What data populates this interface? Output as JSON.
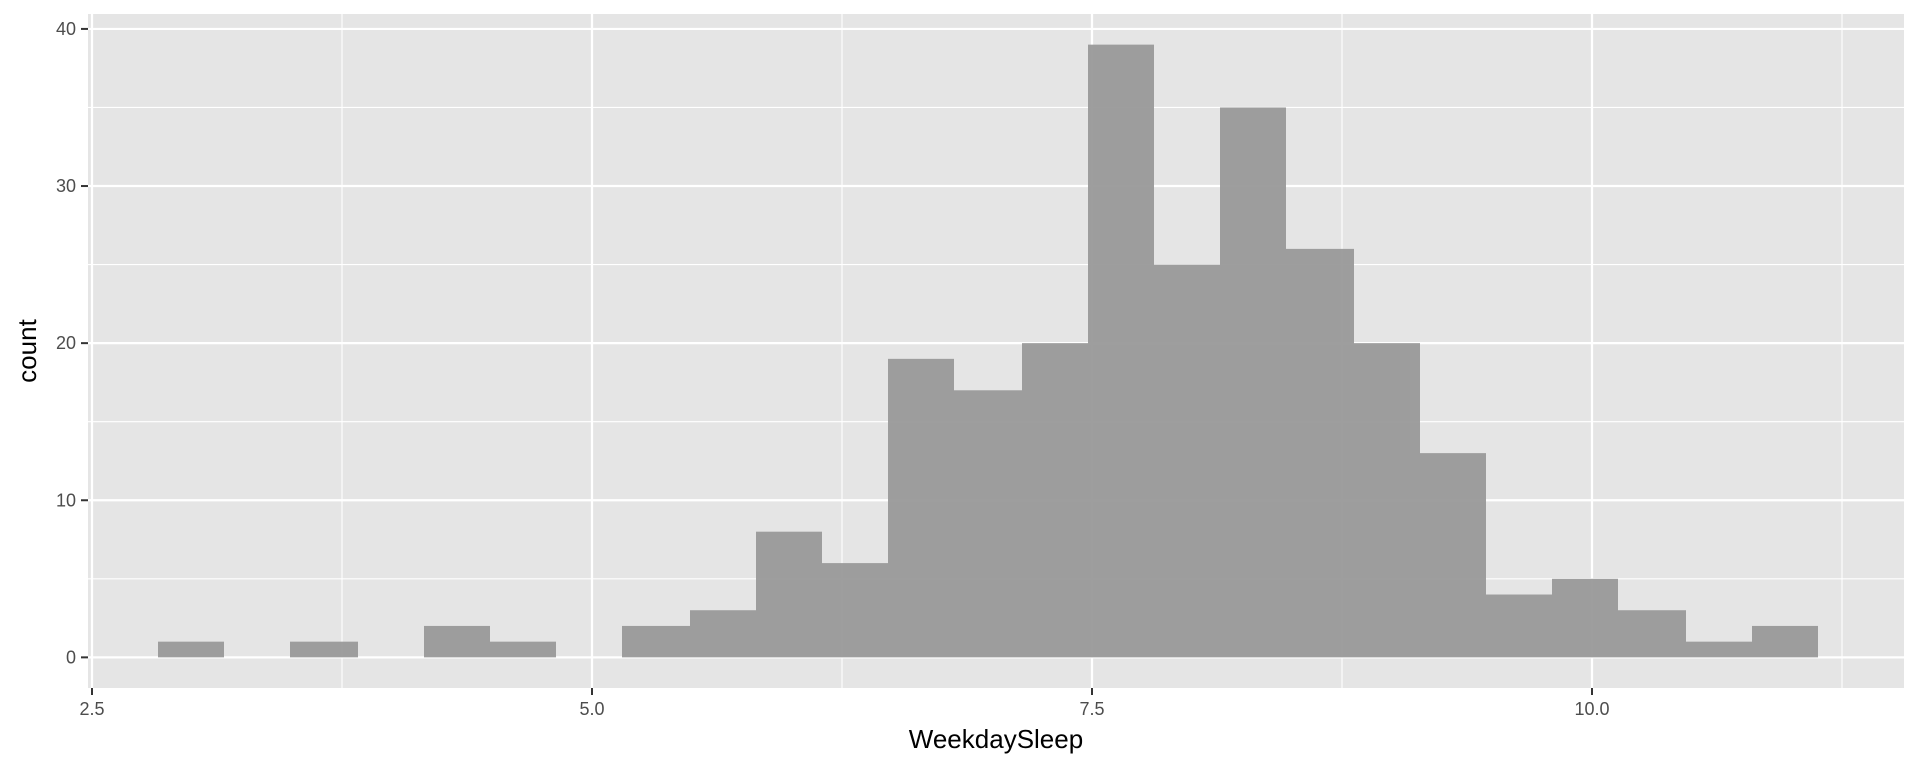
{
  "chart_data": {
    "type": "bar",
    "title": "",
    "xlabel": "WeekdaySleep",
    "ylabel": "count",
    "xlim": [
      2.48,
      11.56
    ],
    "ylim": [
      -1.95,
      40.95
    ],
    "x_ticks": [
      "2.5",
      "5.0",
      "7.5",
      "10.0"
    ],
    "y_ticks": [
      "0",
      "10",
      "20",
      "30",
      "40"
    ],
    "bins": [
      {
        "x_start": 2.83,
        "x_end": 3.16,
        "count": 1
      },
      {
        "x_start": 3.16,
        "x_end": 3.49,
        "count": 0
      },
      {
        "x_start": 3.49,
        "x_end": 3.83,
        "count": 1
      },
      {
        "x_start": 3.83,
        "x_end": 4.16,
        "count": 0
      },
      {
        "x_start": 4.16,
        "x_end": 4.49,
        "count": 2
      },
      {
        "x_start": 4.49,
        "x_end": 4.82,
        "count": 1
      },
      {
        "x_start": 4.82,
        "x_end": 5.15,
        "count": 0
      },
      {
        "x_start": 5.15,
        "x_end": 5.49,
        "count": 2
      },
      {
        "x_start": 5.49,
        "x_end": 5.82,
        "count": 3
      },
      {
        "x_start": 5.82,
        "x_end": 6.15,
        "count": 8
      },
      {
        "x_start": 6.15,
        "x_end": 6.48,
        "count": 6
      },
      {
        "x_start": 6.48,
        "x_end": 6.81,
        "count": 19
      },
      {
        "x_start": 6.81,
        "x_end": 7.15,
        "count": 17
      },
      {
        "x_start": 7.15,
        "x_end": 7.48,
        "count": 20
      },
      {
        "x_start": 7.48,
        "x_end": 7.81,
        "count": 39
      },
      {
        "x_start": 7.81,
        "x_end": 8.14,
        "count": 25
      },
      {
        "x_start": 8.14,
        "x_end": 8.47,
        "count": 35
      },
      {
        "x_start": 8.47,
        "x_end": 8.81,
        "count": 26
      },
      {
        "x_start": 8.81,
        "x_end": 9.14,
        "count": 20
      },
      {
        "x_start": 9.14,
        "x_end": 9.47,
        "count": 13
      },
      {
        "x_start": 9.47,
        "x_end": 9.8,
        "count": 4
      },
      {
        "x_start": 9.8,
        "x_end": 10.13,
        "count": 5
      },
      {
        "x_start": 10.13,
        "x_end": 10.47,
        "count": 3
      },
      {
        "x_start": 10.47,
        "x_end": 10.8,
        "count": 1
      },
      {
        "x_start": 10.8,
        "x_end": 11.13,
        "count": 2
      }
    ],
    "grid": true,
    "colors": {
      "panel": "#e5e5e5",
      "grid": "#ffffff",
      "bar": "#999999",
      "tick_text": "#4d4d4d",
      "title_text": "#000000"
    }
  }
}
